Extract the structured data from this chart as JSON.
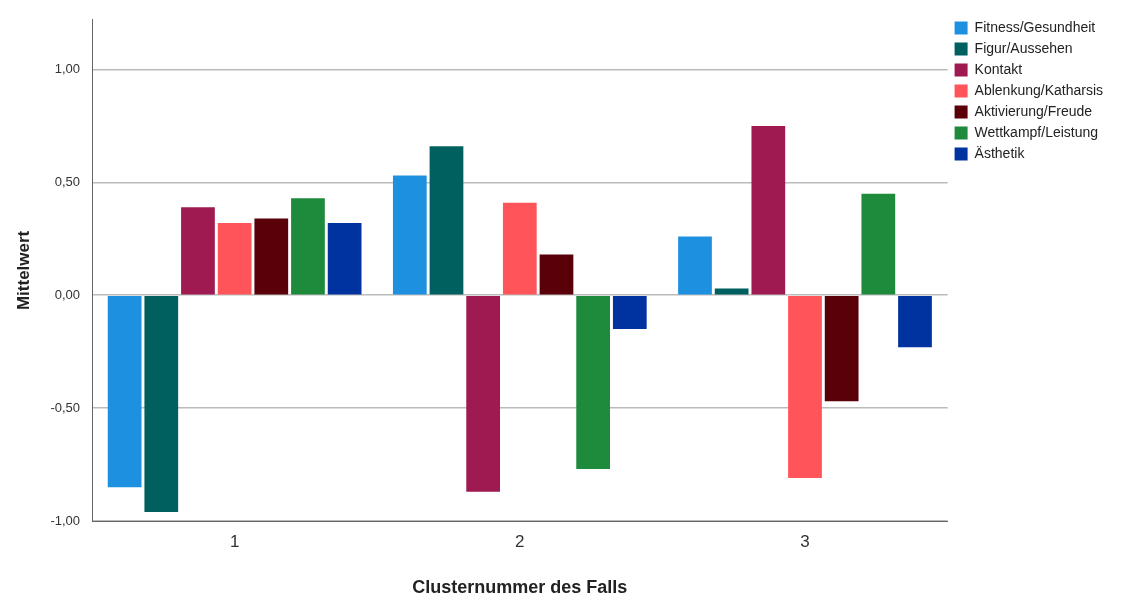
{
  "chart_data": {
    "type": "bar",
    "xlabel": "Clusternummer des Falls",
    "ylabel": "Mittelwert",
    "categories": [
      "1",
      "2",
      "3"
    ],
    "series": [
      {
        "name": "Fitness/Gesundheit",
        "color": "#1e90e0",
        "values": [
          -0.85,
          0.53,
          0.26
        ]
      },
      {
        "name": "Figur/Aussehen",
        "color": "#005f5f",
        "values": [
          -0.96,
          0.66,
          0.03
        ]
      },
      {
        "name": "Kontakt",
        "color": "#9e1a50",
        "values": [
          0.39,
          -0.87,
          0.75
        ]
      },
      {
        "name": "Ablenkung/Katharsis",
        "color": "#ff5459",
        "values": [
          0.32,
          0.41,
          -0.81
        ]
      },
      {
        "name": "Aktivierung/Freude",
        "color": "#5a0008",
        "values": [
          0.34,
          0.18,
          -0.47
        ]
      },
      {
        "name": "Wettkampf/Leistung",
        "color": "#1e8a3c",
        "values": [
          0.43,
          -0.77,
          0.45
        ]
      },
      {
        "name": "Ästhetik",
        "color": "#0033a0",
        "values": [
          0.32,
          -0.15,
          -0.23
        ]
      }
    ],
    "ylim": [
      -1,
      1.22
    ],
    "yticks": [
      {
        "value": -1,
        "label": "-1,00"
      },
      {
        "value": -0.5,
        "label": "-0,50"
      },
      {
        "value": 0,
        "label": "0,00"
      },
      {
        "value": 0.5,
        "label": "0,50"
      },
      {
        "value": 1,
        "label": "1,00"
      }
    ],
    "grid": "y",
    "legend": "top right"
  }
}
